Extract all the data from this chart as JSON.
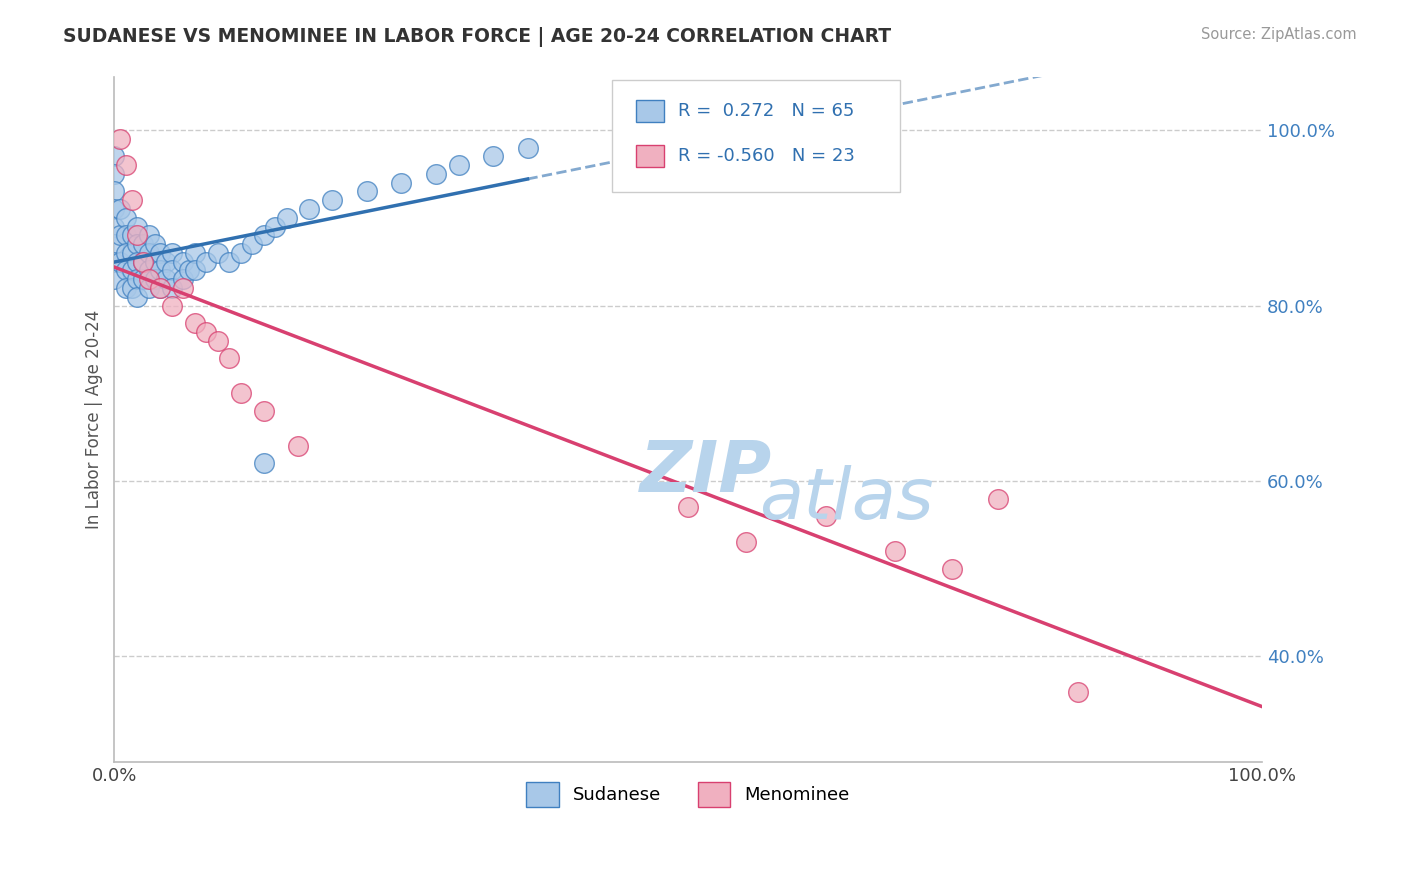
{
  "title": "SUDANESE VS MENOMINEE IN LABOR FORCE | AGE 20-24 CORRELATION CHART",
  "source": "Source: ZipAtlas.com",
  "ylabel": "In Labor Force | Age 20-24",
  "xlim": [
    0.0,
    1.0
  ],
  "ylim": [
    0.28,
    1.06
  ],
  "r_sudanese": 0.272,
  "n_sudanese": 65,
  "r_menominee": -0.56,
  "n_menominee": 23,
  "blue_fill": "#a8c8e8",
  "blue_edge": "#4080c0",
  "pink_fill": "#f0b0c0",
  "pink_edge": "#d84070",
  "blue_line": "#3070b0",
  "pink_line": "#d84070",
  "background_color": "#ffffff",
  "grid_color": "#cccccc",
  "ytick_values": [
    0.4,
    0.6,
    0.8,
    1.0
  ],
  "ytick_labels": [
    "40.0%",
    "60.0%",
    "80.0%",
    "100.0%"
  ],
  "xtick_values": [
    0.0,
    1.0
  ],
  "xtick_labels": [
    "0.0%",
    "100.0%"
  ],
  "sudanese_x": [
    0.0,
    0.0,
    0.0,
    0.0,
    0.0,
    0.0,
    0.0,
    0.0,
    0.005,
    0.005,
    0.005,
    0.01,
    0.01,
    0.01,
    0.01,
    0.01,
    0.015,
    0.015,
    0.015,
    0.015,
    0.02,
    0.02,
    0.02,
    0.02,
    0.02,
    0.025,
    0.025,
    0.025,
    0.03,
    0.03,
    0.03,
    0.03,
    0.035,
    0.035,
    0.035,
    0.04,
    0.04,
    0.04,
    0.045,
    0.045,
    0.05,
    0.05,
    0.05,
    0.06,
    0.06,
    0.065,
    0.07,
    0.07,
    0.08,
    0.09,
    0.1,
    0.11,
    0.12,
    0.13,
    0.14,
    0.15,
    0.17,
    0.19,
    0.22,
    0.25,
    0.28,
    0.3,
    0.33,
    0.36,
    0.13
  ],
  "sudanese_y": [
    0.97,
    0.95,
    0.93,
    0.91,
    0.89,
    0.87,
    0.85,
    0.83,
    0.91,
    0.88,
    0.85,
    0.9,
    0.88,
    0.86,
    0.84,
    0.82,
    0.88,
    0.86,
    0.84,
    0.82,
    0.89,
    0.87,
    0.85,
    0.83,
    0.81,
    0.87,
    0.85,
    0.83,
    0.88,
    0.86,
    0.84,
    0.82,
    0.87,
    0.85,
    0.83,
    0.86,
    0.84,
    0.82,
    0.85,
    0.83,
    0.86,
    0.84,
    0.82,
    0.85,
    0.83,
    0.84,
    0.86,
    0.84,
    0.85,
    0.86,
    0.85,
    0.86,
    0.87,
    0.88,
    0.89,
    0.9,
    0.91,
    0.92,
    0.93,
    0.94,
    0.95,
    0.96,
    0.97,
    0.98,
    0.62
  ],
  "menominee_x": [
    0.005,
    0.01,
    0.015,
    0.02,
    0.025,
    0.03,
    0.04,
    0.05,
    0.06,
    0.07,
    0.08,
    0.09,
    0.1,
    0.11,
    0.13,
    0.16,
    0.5,
    0.55,
    0.62,
    0.68,
    0.73,
    0.77,
    0.84
  ],
  "menominee_y": [
    0.99,
    0.96,
    0.92,
    0.88,
    0.85,
    0.83,
    0.82,
    0.8,
    0.82,
    0.78,
    0.77,
    0.76,
    0.74,
    0.7,
    0.68,
    0.64,
    0.57,
    0.53,
    0.56,
    0.52,
    0.5,
    0.58,
    0.36
  ],
  "watermark_zip_color": "#cce0f0",
  "watermark_atlas_color": "#cce0f0"
}
